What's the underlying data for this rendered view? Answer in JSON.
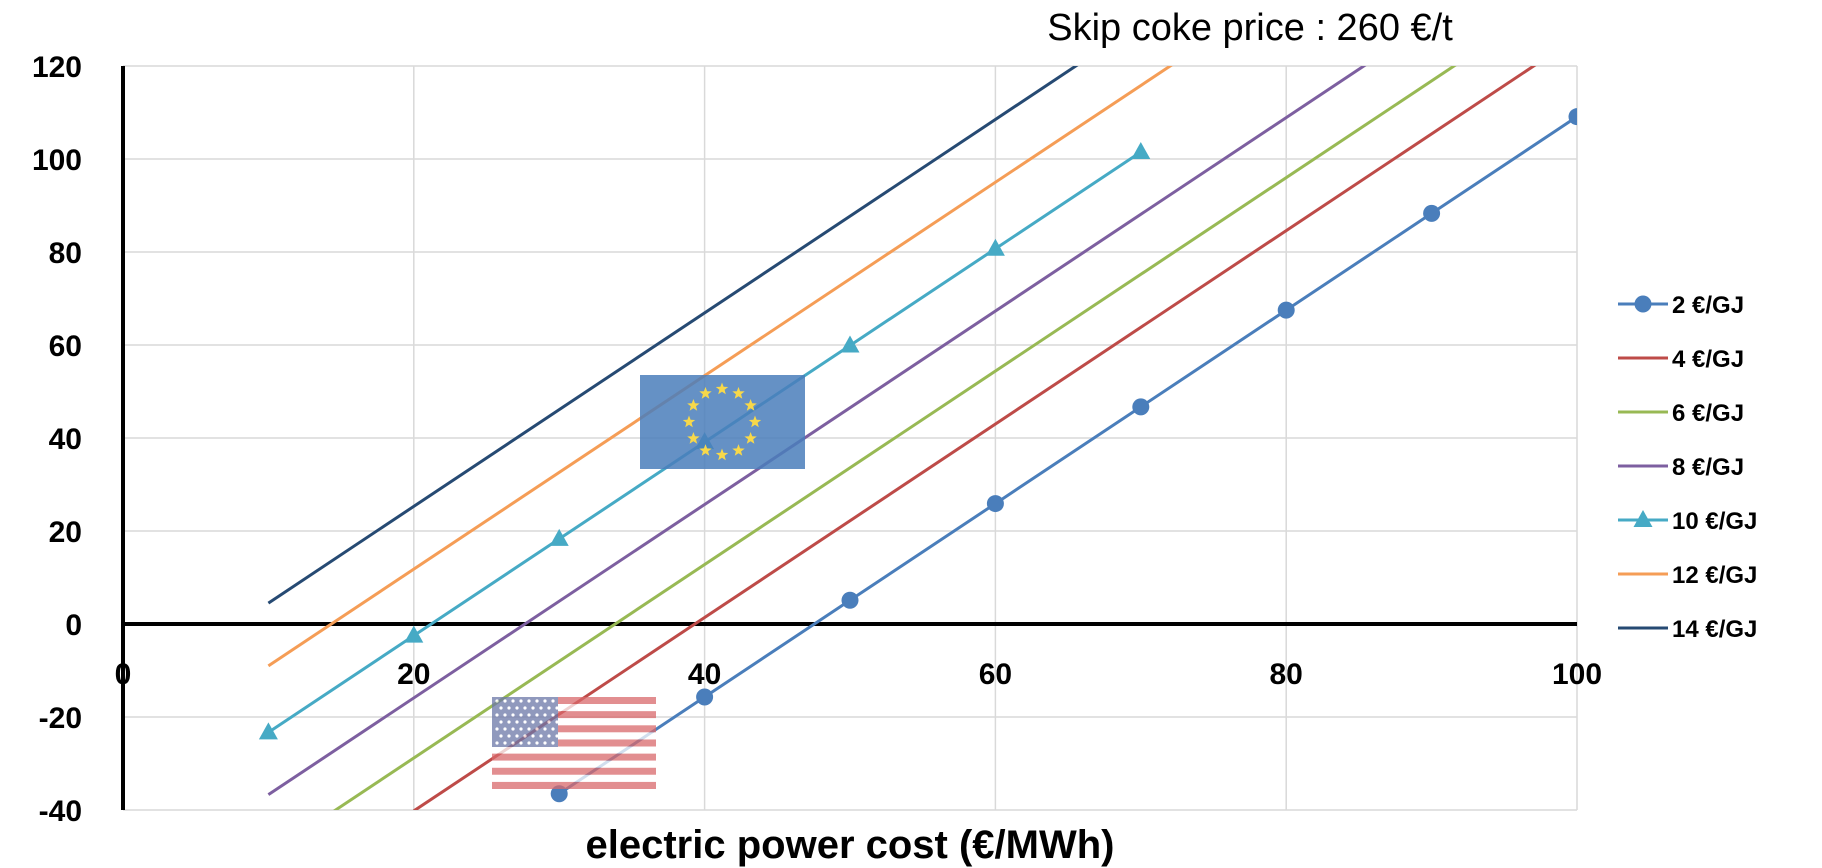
{
  "chart_data": {
    "type": "line",
    "title": "Skip coke price : 260 €/t",
    "xlabel": "electric power cost (€/MWh)",
    "ylabel": "",
    "xlim": [
      0,
      100
    ],
    "ylim": [
      -40,
      120
    ],
    "x_ticks": [
      0,
      20,
      40,
      60,
      80,
      100
    ],
    "y_ticks": [
      -40,
      -20,
      0,
      20,
      40,
      60,
      80,
      100,
      120
    ],
    "grid": true,
    "legend_position": "right",
    "series": [
      {
        "name": "2 €/GJ",
        "color": "#4a7ebb",
        "marker": "circle",
        "x": [
          30,
          40,
          50,
          60,
          70,
          80,
          90,
          100
        ],
        "y": [
          -36.5,
          -15.7,
          5.1,
          25.9,
          46.7,
          67.5,
          88.3,
          109.1
        ]
      },
      {
        "name": "4 €/GJ",
        "color": "#be4b48",
        "marker": "none",
        "x": [
          20,
          100
        ],
        "y": [
          -40.2,
          126.2
        ]
      },
      {
        "name": "6 €/GJ",
        "color": "#98b954",
        "marker": "none",
        "x": [
          14,
          100
        ],
        "y": [
          -41.3,
          137.6
        ]
      },
      {
        "name": "8 €/GJ",
        "color": "#7d5fa0",
        "marker": "none",
        "x": [
          10,
          100
        ],
        "y": [
          -36.7,
          150.5
        ]
      },
      {
        "name": "10 €/GJ",
        "color": "#46aac5",
        "marker": "triangle",
        "x": [
          10,
          20,
          30,
          40,
          50,
          60,
          70
        ],
        "y": [
          -23.3,
          -2.5,
          18.3,
          39.1,
          59.9,
          80.7,
          101.5
        ]
      },
      {
        "name": "12 €/GJ",
        "color": "#f59d56",
        "marker": "none",
        "x": [
          10,
          100
        ],
        "y": [
          -9.0,
          178.2
        ]
      },
      {
        "name": "14 €/GJ",
        "color": "#264a73",
        "marker": "none",
        "x": [
          10,
          100
        ],
        "y": [
          4.5,
          191.7
        ]
      }
    ]
  },
  "colors": {
    "eu_flag_bg": "#4a7ebb",
    "eu_star": "#f7d84a",
    "us_stripe_red": "#d9696b",
    "us_canton": "#6c77a8"
  },
  "icons": [
    "eu-flag-icon",
    "us-flag-icon"
  ]
}
